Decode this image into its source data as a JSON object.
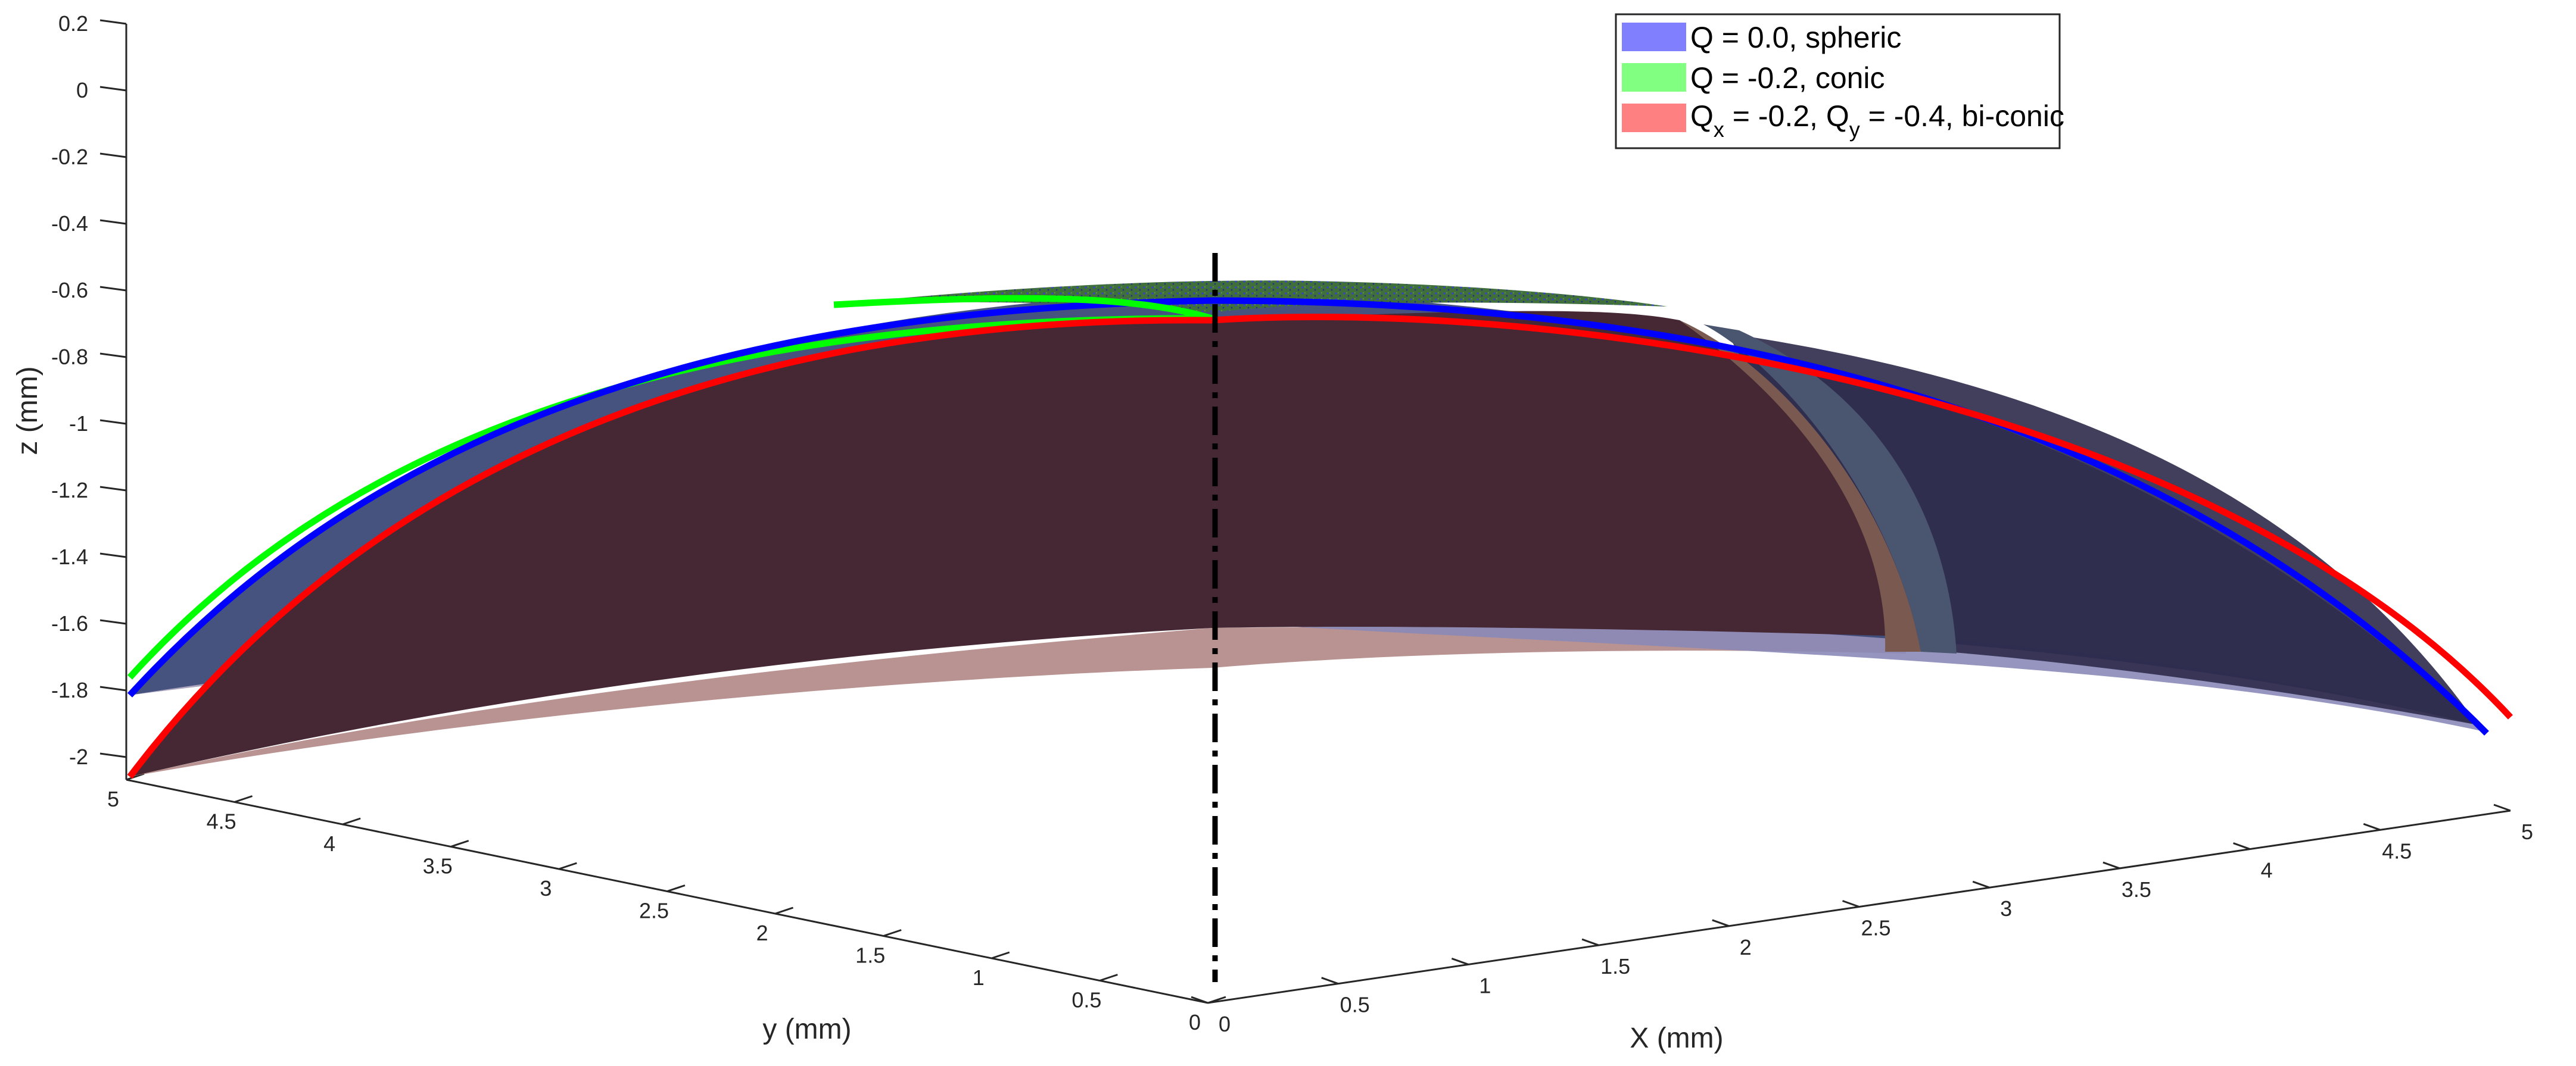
{
  "chart_data": {
    "type": "surface3d",
    "title": "",
    "xlabel": "X (mm)",
    "ylabel": "y (mm)",
    "zlabel": "z (mm)",
    "xlim": [
      0,
      5
    ],
    "ylim": [
      0,
      5
    ],
    "zlim": [
      -2,
      0.2
    ],
    "x_ticks": [
      "0",
      "0.5",
      "1",
      "1.5",
      "2",
      "2.5",
      "3",
      "3.5",
      "4",
      "4.5",
      "5"
    ],
    "y_ticks": [
      "0",
      "0.5",
      "1",
      "1.5",
      "2",
      "2.5",
      "3",
      "3.5",
      "4",
      "4.5",
      "5"
    ],
    "z_ticks": [
      "0.2",
      "0",
      "-0.2",
      "-0.4",
      "-0.6",
      "-0.8",
      "-1",
      "-1.2",
      "-1.4",
      "-1.6",
      "-1.8",
      "-2"
    ],
    "apex_z": -0.62,
    "series": [
      {
        "name": "Q =  0.0, spheric",
        "legend": {
          "main": "Q =  0.0, spheric"
        },
        "color": "#0000ff",
        "fill": "#8080ff",
        "z_edge_y": -1.82,
        "z_edge_x": -1.88
      },
      {
        "name": "Q = -0.2, conic",
        "legend": {
          "main": "Q = -0.2, conic"
        },
        "color": "#00ff00",
        "fill": "#80ff80",
        "z_edge_y": -1.77,
        "z_edge_x": -1.83
      },
      {
        "name": "Qx = -0.2, Qy = -0.4, bi-conic",
        "legend": {
          "q1": "Q",
          "s1": "x",
          "m1": " = -0.2, Q",
          "s2": "y",
          "m2": " = -0.4, bi-conic"
        },
        "color": "#ff0000",
        "fill": "#ff8080",
        "z_edge_y": -2.05,
        "z_edge_x": -1.85
      }
    ],
    "optical_axis": {
      "style": "dash-dot",
      "color": "#000000"
    }
  }
}
